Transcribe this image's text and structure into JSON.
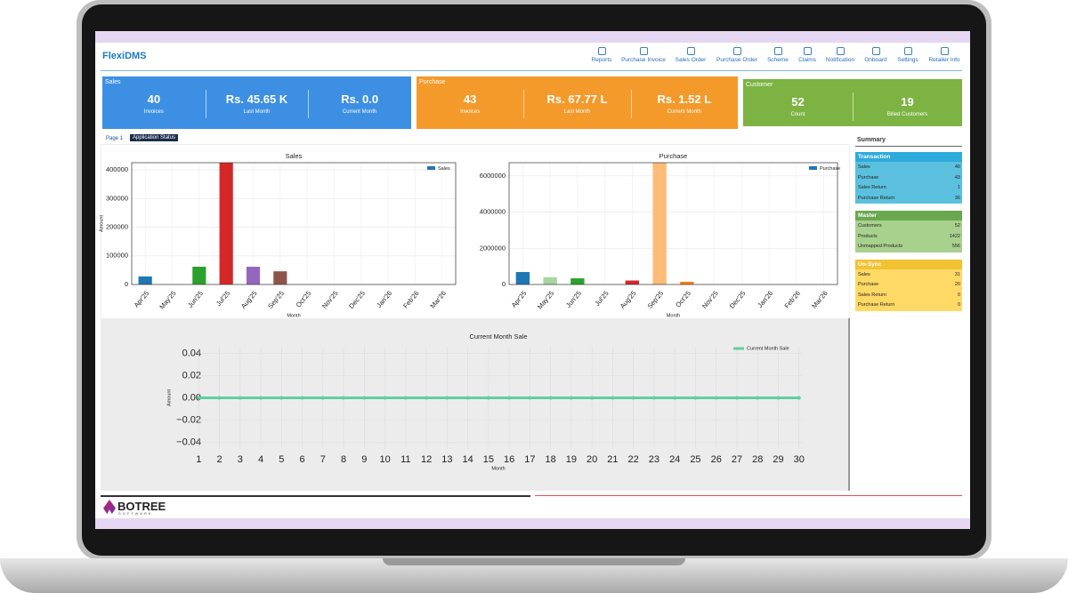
{
  "header": {
    "title": "FlexiDMS",
    "nav": [
      "Reports",
      "Purchase Invoice",
      "Sales Order",
      "Purchase Order",
      "Scheme",
      "Claims",
      "Notification",
      "Onboard",
      "Settings",
      "Retailer Info"
    ]
  },
  "cards": [
    {
      "title": "Sales",
      "color": "#3d8fe3",
      "items": [
        {
          "value": "40",
          "label": "Invoices"
        },
        {
          "value": "Rs. 45.65 K",
          "label": "Last Month"
        },
        {
          "value": "Rs. 0.0",
          "label": "Current Month"
        }
      ]
    },
    {
      "title": "Purchase",
      "color": "#f39a2b",
      "items": [
        {
          "value": "43",
          "label": "Invoices"
        },
        {
          "value": "Rs. 67.77 L",
          "label": "Last Month"
        },
        {
          "value": "Rs. 1.52 L",
          "label": "Current Month"
        }
      ]
    },
    {
      "title": "Customer",
      "color": "#7cb342",
      "items": [
        {
          "value": "52",
          "label": "Count"
        },
        {
          "value": "19",
          "label": "Billed Customers"
        }
      ]
    }
  ],
  "tabs": [
    "Page 1",
    "Application Status"
  ],
  "charts": [
    {
      "type": "bar",
      "title": "Sales",
      "ylabel": "Amount",
      "xlabel": "Month",
      "legend": "Sales",
      "legend_color": "#1f77b4",
      "categories": [
        "Apr'25",
        "May'25",
        "Jun'25",
        "Jul'25",
        "Aug'25",
        "Sep'25",
        "Oct'25",
        "Nov'25",
        "Dec'25",
        "Jan'26",
        "Feb'26",
        "Mar'26"
      ],
      "values": [
        28000,
        0,
        62000,
        440000,
        62000,
        46000,
        0,
        0,
        0,
        0,
        0,
        0
      ],
      "colors": [
        "#1f77b4",
        "#ff7f0e",
        "#2ca02c",
        "#d62728",
        "#9467bd",
        "#8c564b",
        "#e377c2",
        "#7f7f7f",
        "#bcbd22",
        "#17becf",
        "#1f77b4",
        "#ff7f0e"
      ],
      "ylim": [
        0,
        425000
      ],
      "yticks": [
        0,
        100000,
        200000,
        300000,
        400000
      ],
      "grid": true
    },
    {
      "type": "bar",
      "title": "Purchase",
      "xlabel": "Month",
      "legend": "Purchase",
      "legend_color": "#1f77b4",
      "categories": [
        "Apr'25",
        "May'25",
        "Jun'25",
        "Jul'25",
        "Aug'25",
        "Sep'25",
        "Oct'25",
        "Nov'25",
        "Dec'25",
        "Jan'26",
        "Feb'26",
        "Mar'26"
      ],
      "values": [
        690000,
        400000,
        340000,
        0,
        220000,
        6900000,
        150000,
        0,
        0,
        0,
        0,
        0
      ],
      "colors": [
        "#1f77b4",
        "#a8d5a0",
        "#2ca02c",
        "#d62728",
        "#d62728",
        "#ffbb78",
        "#ff7f0e",
        "#7f7f7f",
        "#bcbd22",
        "#17becf",
        "#1f77b4",
        "#ff7f0e"
      ],
      "ylim": [
        0,
        6730000
      ],
      "yticks": [
        0,
        2000000,
        4000000,
        6000000
      ],
      "grid": true
    },
    {
      "type": "line",
      "title": "Current Month Sale",
      "ylabel": "Amount",
      "xlabel": "Month",
      "legend": "Current Month Sale",
      "color": "#5fcf9f",
      "x": [
        1,
        2,
        3,
        4,
        5,
        6,
        7,
        8,
        9,
        10,
        11,
        12,
        13,
        14,
        15,
        16,
        17,
        18,
        19,
        20,
        21,
        22,
        23,
        24,
        25,
        26,
        27,
        28,
        29,
        30
      ],
      "values": [
        0,
        0,
        0,
        0,
        0,
        0,
        0,
        0,
        0,
        0,
        0,
        0,
        0,
        0,
        0,
        0,
        0,
        0,
        0,
        0,
        0,
        0,
        0,
        0,
        0,
        0,
        0,
        0,
        0,
        0
      ],
      "xlim": [
        0,
        31
      ],
      "xticks": [
        1,
        2,
        3,
        4,
        5,
        6,
        7,
        8,
        9,
        10,
        11,
        12,
        13,
        14,
        15,
        16,
        17,
        18,
        19,
        20,
        21,
        22,
        23,
        24,
        25,
        26,
        27,
        28,
        29,
        30
      ],
      "ylim": [
        -0.05,
        0.05
      ],
      "yticks": [
        {
          "value": -0.04,
          "label": "−0.04"
        },
        {
          "value": -0.02,
          "label": "−0.02"
        },
        {
          "value": 0,
          "label": "0.00"
        },
        0.02,
        0.04
      ],
      "grid": true
    }
  ],
  "summary": {
    "title": "Summary",
    "sections": [
      {
        "title": "Transaction",
        "color": "#5bc0de",
        "head": "#2eaadc",
        "rows": [
          [
            "Sales",
            "40"
          ],
          [
            "Purchase",
            "43"
          ],
          [
            "Sales Return",
            "1"
          ],
          [
            "Purchase Return",
            "36"
          ]
        ]
      },
      {
        "title": "Master",
        "color": "#a9d18e",
        "head": "#6aa84f",
        "rows": [
          [
            "Customers",
            "52"
          ],
          [
            "Products",
            "1422"
          ],
          [
            "Unmapped Products",
            "556"
          ]
        ]
      },
      {
        "title": "Un-Sync",
        "color": "#ffd966",
        "head": "#f1c232",
        "rows": [
          [
            "Sales",
            "31"
          ],
          [
            "Purchase",
            "20"
          ],
          [
            "Sales Return",
            "0"
          ],
          [
            "Purchase Return",
            "0"
          ]
        ]
      }
    ]
  },
  "footer": {
    "logo": "BOTREE",
    "tagline": "SOFTWARE"
  }
}
